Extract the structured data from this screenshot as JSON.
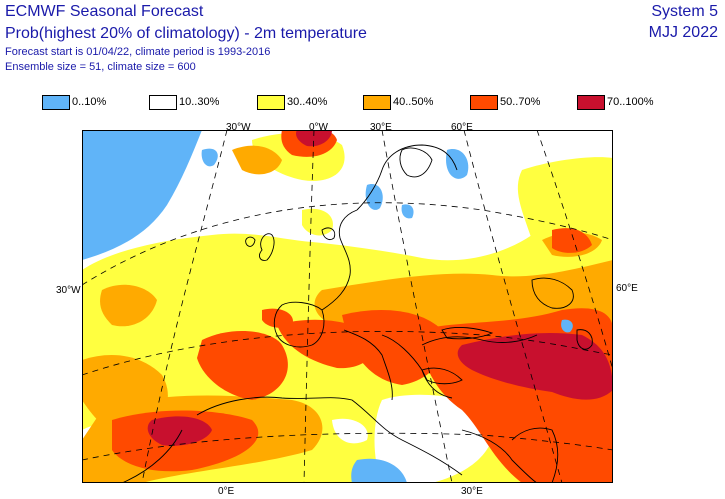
{
  "header": {
    "title": "ECMWF Seasonal Forecast",
    "subtitle": "Prob(highest 20% of climatology) - 2m temperature",
    "forecast_info": "Forecast start is 01/04/22, climate period is 1993-2016",
    "ensemble_info": "Ensemble size = 51, climate size = 600",
    "system": "System 5",
    "period": "MJJ 2022"
  },
  "legend": [
    {
      "label": "0..10%",
      "color": "#60b4f8"
    },
    {
      "label": "10..30%",
      "color": "#ffffff"
    },
    {
      "label": "30..40%",
      "color": "#ffff40"
    },
    {
      "label": "40..50%",
      "color": "#ffaa00"
    },
    {
      "label": "50..70%",
      "color": "#ff4a00"
    },
    {
      "label": "70..100%",
      "color": "#c8102e"
    }
  ],
  "axis_labels": {
    "top_30w": "30°W",
    "top_0w": "0°W",
    "top_30e": "30°E",
    "top_60e": "60°E",
    "left_30w": "30°W",
    "right_60e": "60°E",
    "bottom_0e": "0°E",
    "bottom_30e": "30°E"
  }
}
